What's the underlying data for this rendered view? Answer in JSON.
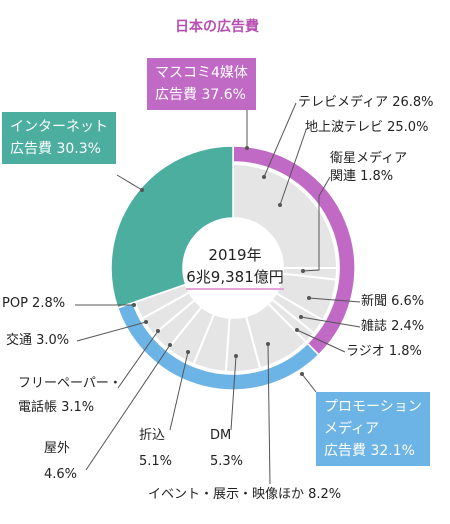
{
  "chart_data": {
    "type": "pie",
    "title": "日本の広告費",
    "center_label": {
      "year": "2019年",
      "total": "6兆9,381億円"
    },
    "colors": {
      "mass": "#c06ac6",
      "promotion": "#6cb3e6",
      "internet": "#4bae9f",
      "inner_fill": "#e5e5e5"
    },
    "outer_ring": [
      {
        "name": "マスコミ4媒体 広告費",
        "line1": "マスコミ4媒体",
        "line2": "広告費 37.6%",
        "value": 37.6,
        "color_key": "mass"
      },
      {
        "name": "プロモーションメディア 広告費",
        "line1": "プロモーション",
        "line2": "メディア",
        "line3": "広告費 32.1%",
        "value": 32.1,
        "color_key": "promotion"
      },
      {
        "name": "インターネット 広告費",
        "line1": "インターネット",
        "line2": "広告費 30.3%",
        "value": 30.3,
        "color_key": "internet"
      }
    ],
    "inner_ring": [
      {
        "name": "テレビメディア",
        "value": 26.8,
        "text": "テレビメディア 26.8%"
      },
      {
        "name": "新聞",
        "value": 6.6,
        "text": "新聞 6.6%"
      },
      {
        "name": "雑誌",
        "value": 2.4,
        "text": "雑誌 2.4%"
      },
      {
        "name": "ラジオ",
        "value": 1.8,
        "text": "ラジオ 1.8%"
      },
      {
        "name": "イベント・展示・映像ほか",
        "value": 8.2,
        "text": "イベント・展示・映像ほか 8.2%"
      },
      {
        "name": "DM",
        "value": 5.3,
        "text": "5.3%",
        "title": "DM"
      },
      {
        "name": "折込",
        "value": 5.1,
        "text": "5.1%",
        "title": "折込"
      },
      {
        "name": "屋外",
        "value": 4.6,
        "text": "4.6%",
        "title": "屋外"
      },
      {
        "name": "フリーペーパー・電話帳",
        "value": 3.1,
        "text": "電話帳 3.1%",
        "title": "フリーペーパー・"
      },
      {
        "name": "交通",
        "value": 3.0,
        "text": "交通 3.0%"
      },
      {
        "name": "POP",
        "value": 2.8,
        "text": "POP 2.8%"
      }
    ],
    "sub_labels": [
      {
        "name": "地上波テレビ",
        "value": 25.0,
        "text": "地上波テレビ 25.0%"
      },
      {
        "name": "衛星メディア関連",
        "value": 1.8,
        "line1": "衛星メディア",
        "line2": "関連 1.8%"
      }
    ]
  }
}
